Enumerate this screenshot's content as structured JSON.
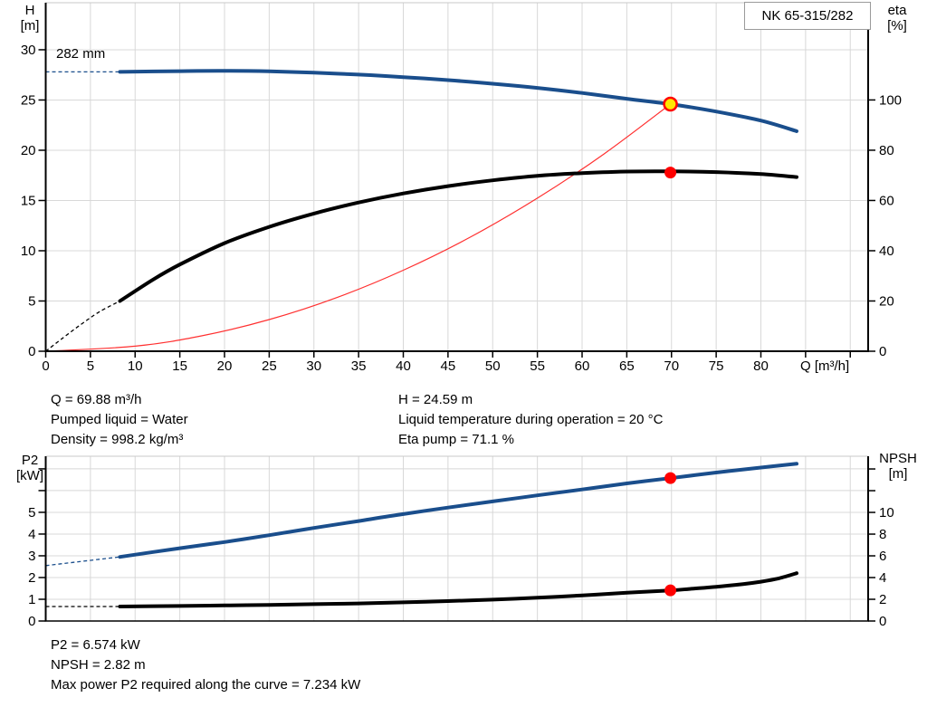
{
  "title_box": "NK 65-315/282",
  "impeller_label": "282 mm",
  "axis_labels": {
    "head": [
      "H",
      "[m]"
    ],
    "eta": [
      "eta",
      "[%]"
    ],
    "flow": "Q [m³/h]",
    "p2": [
      "P2",
      "[kW]"
    ],
    "npsh": [
      "NPSH",
      "[m]"
    ]
  },
  "results": {
    "q": "Q = 69.88 m³/h",
    "pumped_liquid": "Pumped liquid = Water",
    "density": "Density = 998.2 kg/m³",
    "h": "H = 24.59 m",
    "liquid_temp": "Liquid temperature during operation = 20 °C",
    "eta_pump": "Eta pump = 71.1 %"
  },
  "power_results": {
    "p2": "P2 = 6.574 kW",
    "npsh": "NPSH = 2.82 m",
    "max_power": "Max power P2 required along the curve = 7.234 kW"
  },
  "colors": {
    "curve_blue": "#1a4e8c",
    "curve_black": "#000000",
    "system_red": "#ff3030",
    "marker_red": "#ff0000",
    "marker_yellow": "#ffe600",
    "grid": "#d8d8d8",
    "plot_border": "#c9c9c9",
    "axis": "#000000"
  },
  "chart_data": [
    {
      "type": "line",
      "name": "head-efficiency-chart",
      "title": "NK 65-315/282",
      "x_axis": {
        "label": "Q [m³/h]",
        "min": 0,
        "max": 92,
        "grid_step": 5,
        "labeled_ticks": [
          0,
          5,
          10,
          15,
          20,
          25,
          30,
          35,
          40,
          45,
          50,
          55,
          60,
          65,
          70,
          75,
          80
        ],
        "unlabeled_ticks": [
          85,
          90
        ]
      },
      "left_axis": {
        "label": "H [m]",
        "min": 0,
        "max": 34.68,
        "grid_step": 5,
        "labeled_ticks": [
          0,
          5,
          10,
          15,
          20,
          25,
          30
        ],
        "unlabeled_ticks": []
      },
      "right_axis": {
        "label": "eta [%]",
        "min": 0,
        "max": 138.7,
        "labeled_ticks": [
          0,
          20,
          40,
          60,
          80,
          100
        ],
        "unlabeled_ticks": []
      },
      "series": [
        {
          "name": "system-curve",
          "color": "#ff3030",
          "width": 1.2,
          "axis": "left",
          "points": [
            [
              0,
              0
            ],
            [
              10,
              0.5
            ],
            [
              17.5,
              1.54
            ],
            [
              25,
              3.15
            ],
            [
              32.5,
              5.32
            ],
            [
              40,
              8.06
            ],
            [
              47.5,
              11.36
            ],
            [
              55,
              15.23
            ],
            [
              62.5,
              19.66
            ],
            [
              69.88,
              24.59
            ]
          ]
        },
        {
          "name": "efficiency-curve",
          "color": "#000000",
          "width": 4,
          "axis": "right",
          "dash_points": [
            [
              0,
              0
            ],
            [
              2,
              5.5
            ],
            [
              4,
              10.8
            ],
            [
              6,
              15.7
            ],
            [
              8.3,
              20
            ]
          ],
          "points": [
            [
              8.3,
              20
            ],
            [
              12,
              28.5
            ],
            [
              15,
              34.5
            ],
            [
              20,
              43
            ],
            [
              25,
              49.5
            ],
            [
              30,
              54.8
            ],
            [
              35,
              59.2
            ],
            [
              40,
              62.8
            ],
            [
              45,
              65.7
            ],
            [
              50,
              68
            ],
            [
              55,
              69.8
            ],
            [
              60,
              70.9
            ],
            [
              65,
              71.5
            ],
            [
              70,
              71.6
            ],
            [
              75,
              71.3
            ],
            [
              80,
              70.5
            ],
            [
              84,
              69.3
            ]
          ]
        },
        {
          "name": "head-curve",
          "color": "#1a4e8c",
          "width": 4,
          "axis": "left",
          "dash_points": [
            [
              0,
              27.8
            ],
            [
              8.3,
              27.8
            ]
          ],
          "points": [
            [
              8.3,
              27.8
            ],
            [
              15,
              27.87
            ],
            [
              20,
              27.9
            ],
            [
              25,
              27.85
            ],
            [
              30,
              27.72
            ],
            [
              35,
              27.53
            ],
            [
              40,
              27.28
            ],
            [
              45,
              26.98
            ],
            [
              50,
              26.62
            ],
            [
              55,
              26.2
            ],
            [
              60,
              25.7
            ],
            [
              65,
              25.12
            ],
            [
              69.88,
              24.59
            ],
            [
              75,
              23.85
            ],
            [
              80,
              22.95
            ],
            [
              84,
              21.9
            ]
          ]
        }
      ],
      "markers": [
        {
          "name": "duty-point-marker",
          "q": 69.88,
          "value": 24.59,
          "axis": "left",
          "r": 7,
          "fill": "#ffe600",
          "stroke": "#ff0000",
          "stroke_width": 2.5
        },
        {
          "name": "efficiency-point-marker",
          "q": 69.88,
          "value": 71.1,
          "axis": "right",
          "r": 6.5,
          "fill": "#ff0000"
        }
      ],
      "annotations": [
        {
          "text": "282 mm"
        }
      ],
      "duty_point": {
        "q_m3h": 69.88,
        "h_m": 24.59,
        "eta_pct": 71.1
      }
    },
    {
      "type": "line",
      "name": "power-npsh-chart",
      "x_axis": {
        "label": "",
        "min": 0,
        "max": 92,
        "grid_step": 5,
        "labeled_ticks": [],
        "unlabeled_ticks": []
      },
      "left_axis": {
        "label": "P2 [kW]",
        "min": 0,
        "max": 7.58,
        "grid_step": 1,
        "labeled_ticks": [
          0,
          1,
          2,
          3,
          4,
          5
        ],
        "unlabeled_ticks": [
          6,
          7
        ]
      },
      "right_axis": {
        "label": "NPSH [m]",
        "min": 0,
        "max": 15.17,
        "labeled_ticks": [
          0,
          2,
          4,
          6,
          8,
          10
        ],
        "unlabeled_ticks": [
          12,
          14
        ]
      },
      "series": [
        {
          "name": "power-curve",
          "color": "#1a4e8c",
          "width": 4,
          "axis": "left",
          "dash_points": [
            [
              0,
              2.55
            ],
            [
              8.3,
              2.95
            ]
          ],
          "points": [
            [
              8.3,
              2.95
            ],
            [
              15,
              3.35
            ],
            [
              20,
              3.63
            ],
            [
              25,
              3.95
            ],
            [
              30,
              4.28
            ],
            [
              35,
              4.6
            ],
            [
              40,
              4.92
            ],
            [
              45,
              5.22
            ],
            [
              50,
              5.5
            ],
            [
              55,
              5.78
            ],
            [
              60,
              6.05
            ],
            [
              65,
              6.33
            ],
            [
              69.88,
              6.574
            ],
            [
              75,
              6.83
            ],
            [
              80,
              7.06
            ],
            [
              84,
              7.234
            ]
          ]
        },
        {
          "name": "npsh-curve",
          "color": "#000000",
          "width": 4,
          "axis": "right",
          "dash_points": [
            [
              0,
              1.33
            ],
            [
              8.3,
              1.33
            ]
          ],
          "points": [
            [
              8.3,
              1.33
            ],
            [
              15,
              1.38
            ],
            [
              20,
              1.43
            ],
            [
              25,
              1.48
            ],
            [
              30,
              1.55
            ],
            [
              35,
              1.62
            ],
            [
              40,
              1.72
            ],
            [
              45,
              1.83
            ],
            [
              50,
              1.97
            ],
            [
              55,
              2.14
            ],
            [
              60,
              2.36
            ],
            [
              65,
              2.6
            ],
            [
              69.88,
              2.82
            ],
            [
              72,
              2.95
            ],
            [
              75,
              3.15
            ],
            [
              78,
              3.4
            ],
            [
              80,
              3.62
            ],
            [
              82,
              3.93
            ],
            [
              84,
              4.4
            ]
          ]
        }
      ],
      "markers": [
        {
          "name": "power-point-marker",
          "q": 69.88,
          "value": 6.574,
          "axis": "left",
          "r": 6.5,
          "fill": "#ff0000"
        },
        {
          "name": "npsh-point-marker",
          "q": 69.88,
          "value": 2.82,
          "axis": "right",
          "r": 6.5,
          "fill": "#ff0000"
        }
      ],
      "duty_point": {
        "q_m3h": 69.88,
        "p2_kw": 6.574,
        "npsh_m": 2.82,
        "max_p2_kw": 7.234
      }
    }
  ]
}
